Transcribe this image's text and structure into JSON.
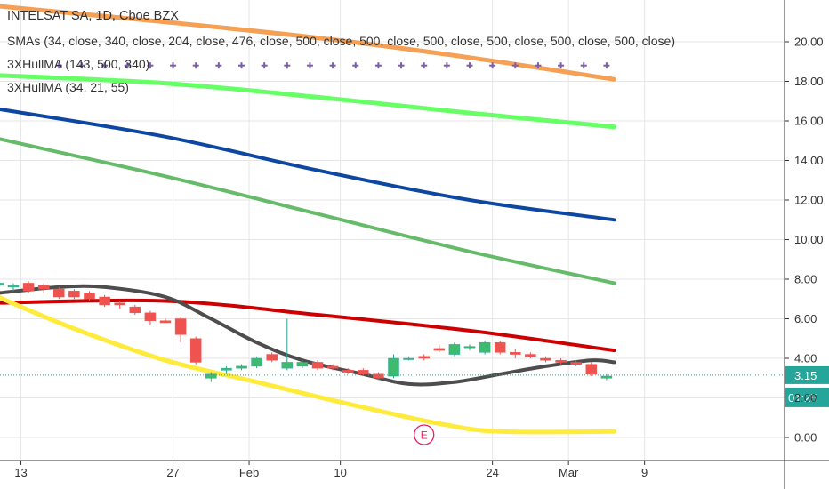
{
  "header": {
    "title": "INTELSAT SA, 1D, Cboe BZX",
    "indicators": [
      "SMAs (34, close, 340, close, 204, close, 476, close, 500, close, 500, close, 500, close, 500, close, 500, close, 500, close)",
      "3XHullMA (143, 500, 340)",
      "3XHullMA (34, 21, 55)"
    ]
  },
  "price_badge": {
    "value": "3.15",
    "color": "#26a69a",
    "price": 3.15
  },
  "timer_badge": {
    "value": "01:25",
    "color": "#26a69a"
  },
  "earnings_marker": {
    "label": "E",
    "color": "#e91e63",
    "day": 27
  },
  "chart_data": {
    "type": "line",
    "title": "INTELSAT SA, 1D, Cboe BZX",
    "x_unit": "trading day index (0 = first visible bar, Jan 8 area)",
    "ylim": [
      -0.9,
      22.2
    ],
    "grid": true,
    "y_ticks": [
      "0.00",
      "2.00",
      "4.00",
      "6.00",
      "8.00",
      "10.00",
      "12.00",
      "14.00",
      "16.00",
      "18.00",
      "20.00"
    ],
    "y_tick_values": [
      0,
      2,
      4,
      6,
      8,
      10,
      12,
      14,
      16,
      18,
      20
    ],
    "x_ticks": [
      {
        "label": "13",
        "day": 0.5
      },
      {
        "label": "27",
        "day": 10.5
      },
      {
        "label": "Feb",
        "day": 15.5
      },
      {
        "label": "10",
        "day": 21.5
      },
      {
        "label": "24",
        "day": 31.5
      },
      {
        "label": "Mar",
        "day": 36.5
      },
      {
        "label": "9",
        "day": 41.5
      }
    ],
    "series": [
      {
        "color": "#f5a055",
        "width": 5,
        "style": "solid",
        "points": [
          [
            -1,
            21.8
          ],
          [
            10,
            21.0
          ],
          [
            20,
            20.2
          ],
          [
            30,
            19.2
          ],
          [
            39.5,
            18.1
          ]
        ]
      },
      {
        "color": "#7b5ea7",
        "width": 2,
        "style": "cross",
        "points": [
          [
            3,
            18.8
          ],
          [
            39.5,
            18.8
          ]
        ]
      },
      {
        "color": "#66ff66",
        "width": 5,
        "style": "solid",
        "points": [
          [
            -1,
            18.3
          ],
          [
            10,
            17.9
          ],
          [
            20,
            17.2
          ],
          [
            30,
            16.4
          ],
          [
            39.5,
            15.7
          ]
        ]
      },
      {
        "color": "#0d47a1",
        "width": 4,
        "style": "solid",
        "points": [
          [
            -1,
            16.6
          ],
          [
            10,
            15.2
          ],
          [
            20,
            13.5
          ],
          [
            30,
            12.0
          ],
          [
            39.5,
            11.0
          ]
        ]
      },
      {
        "color": "#66bb6a",
        "width": 4,
        "style": "solid",
        "points": [
          [
            -1,
            15.1
          ],
          [
            10,
            13.2
          ],
          [
            20,
            11.3
          ],
          [
            30,
            9.4
          ],
          [
            39.5,
            7.8
          ]
        ]
      },
      {
        "color": "#cc0000",
        "width": 4,
        "style": "solid",
        "points": [
          [
            -1,
            6.8
          ],
          [
            10,
            6.9
          ],
          [
            20,
            6.2
          ],
          [
            30,
            5.4
          ],
          [
            39.5,
            4.4
          ]
        ]
      },
      {
        "color": "#4d4d4d",
        "width": 4,
        "style": "solid",
        "points": [
          [
            -1,
            7.3
          ],
          [
            3,
            7.6
          ],
          [
            6,
            7.6
          ],
          [
            10,
            7.1
          ],
          [
            13,
            6.0
          ],
          [
            16,
            4.8
          ],
          [
            19,
            3.9
          ],
          [
            23,
            3.2
          ],
          [
            26,
            2.7
          ],
          [
            29,
            2.8
          ],
          [
            32,
            3.2
          ],
          [
            35,
            3.6
          ],
          [
            38,
            3.9
          ],
          [
            39.5,
            3.8
          ]
        ]
      },
      {
        "color": "#ffeb3b",
        "width": 5,
        "style": "solid",
        "points": [
          [
            -1,
            7.1
          ],
          [
            4,
            5.5
          ],
          [
            10,
            3.9
          ],
          [
            16,
            2.8
          ],
          [
            22,
            1.7
          ],
          [
            28,
            0.7
          ],
          [
            32,
            0.3
          ],
          [
            39.5,
            0.3
          ]
        ]
      }
    ],
    "candles": [
      {
        "day": -1,
        "o": 7.7,
        "h": 7.9,
        "l": 7.5,
        "c": 7.8
      },
      {
        "day": 0,
        "o": 7.6,
        "h": 7.8,
        "l": 7.4,
        "c": 7.7
      },
      {
        "day": 1,
        "o": 7.8,
        "h": 7.9,
        "l": 7.3,
        "c": 7.4
      },
      {
        "day": 2,
        "o": 7.7,
        "h": 7.8,
        "l": 7.3,
        "c": 7.5
      },
      {
        "day": 3,
        "o": 7.5,
        "h": 7.6,
        "l": 7.0,
        "c": 7.1
      },
      {
        "day": 4,
        "o": 7.4,
        "h": 7.5,
        "l": 7.0,
        "c": 7.1
      },
      {
        "day": 5,
        "o": 7.3,
        "h": 7.4,
        "l": 6.9,
        "c": 7.0
      },
      {
        "day": 6,
        "o": 7.1,
        "h": 7.2,
        "l": 6.6,
        "c": 6.7
      },
      {
        "day": 7,
        "o": 6.8,
        "h": 6.9,
        "l": 6.5,
        "c": 6.7
      },
      {
        "day": 8,
        "o": 6.6,
        "h": 6.7,
        "l": 6.2,
        "c": 6.3
      },
      {
        "day": 9,
        "o": 6.3,
        "h": 6.4,
        "l": 5.7,
        "c": 5.9
      },
      {
        "day": 10,
        "o": 5.9,
        "h": 6.0,
        "l": 5.8,
        "c": 5.8
      },
      {
        "day": 11,
        "o": 6.0,
        "h": 6.1,
        "l": 4.8,
        "c": 5.2
      },
      {
        "day": 12,
        "o": 5.0,
        "h": 5.1,
        "l": 3.7,
        "c": 3.8
      },
      {
        "day": 13,
        "o": 3.0,
        "h": 3.3,
        "l": 2.8,
        "c": 3.2
      },
      {
        "day": 14,
        "o": 3.4,
        "h": 3.6,
        "l": 3.2,
        "c": 3.5
      },
      {
        "day": 15,
        "o": 3.5,
        "h": 3.7,
        "l": 3.4,
        "c": 3.6
      },
      {
        "day": 16,
        "o": 3.6,
        "h": 4.1,
        "l": 3.5,
        "c": 4.0
      },
      {
        "day": 17,
        "o": 4.2,
        "h": 4.3,
        "l": 3.8,
        "c": 3.9
      },
      {
        "day": 18,
        "o": 3.5,
        "h": 6.0,
        "l": 3.4,
        "c": 3.8
      },
      {
        "day": 19,
        "o": 3.6,
        "h": 3.9,
        "l": 3.5,
        "c": 3.8
      },
      {
        "day": 20,
        "o": 3.8,
        "h": 3.9,
        "l": 3.4,
        "c": 3.5
      },
      {
        "day": 21,
        "o": 3.6,
        "h": 3.7,
        "l": 3.4,
        "c": 3.5
      },
      {
        "day": 22,
        "o": 3.4,
        "h": 3.5,
        "l": 3.2,
        "c": 3.3
      },
      {
        "day": 23,
        "o": 3.4,
        "h": 3.5,
        "l": 3.1,
        "c": 3.2
      },
      {
        "day": 24,
        "o": 3.2,
        "h": 3.3,
        "l": 2.9,
        "c": 3.0
      },
      {
        "day": 25,
        "o": 3.1,
        "h": 4.2,
        "l": 3.0,
        "c": 4.0
      },
      {
        "day": 26,
        "o": 4.0,
        "h": 4.1,
        "l": 3.9,
        "c": 4.0
      },
      {
        "day": 27,
        "o": 4.1,
        "h": 4.2,
        "l": 3.9,
        "c": 4.0
      },
      {
        "day": 28,
        "o": 4.5,
        "h": 4.7,
        "l": 4.3,
        "c": 4.4
      },
      {
        "day": 29,
        "o": 4.2,
        "h": 4.8,
        "l": 4.1,
        "c": 4.7
      },
      {
        "day": 30,
        "o": 4.6,
        "h": 4.7,
        "l": 4.4,
        "c": 4.6
      },
      {
        "day": 31,
        "o": 4.3,
        "h": 4.9,
        "l": 4.2,
        "c": 4.8
      },
      {
        "day": 32,
        "o": 4.8,
        "h": 4.9,
        "l": 4.2,
        "c": 4.3
      },
      {
        "day": 33,
        "o": 4.3,
        "h": 4.5,
        "l": 4.0,
        "c": 4.2
      },
      {
        "day": 34,
        "o": 4.2,
        "h": 4.3,
        "l": 4.0,
        "c": 4.1
      },
      {
        "day": 35,
        "o": 4.0,
        "h": 4.1,
        "l": 3.8,
        "c": 3.9
      },
      {
        "day": 36,
        "o": 3.9,
        "h": 4.0,
        "l": 3.7,
        "c": 3.8
      },
      {
        "day": 37,
        "o": 3.8,
        "h": 3.9,
        "l": 3.6,
        "c": 3.7
      },
      {
        "day": 38,
        "o": 3.7,
        "h": 3.8,
        "l": 3.1,
        "c": 3.2
      },
      {
        "day": 39,
        "o": 3.0,
        "h": 3.2,
        "l": 2.9,
        "c": 3.1
      }
    ]
  }
}
